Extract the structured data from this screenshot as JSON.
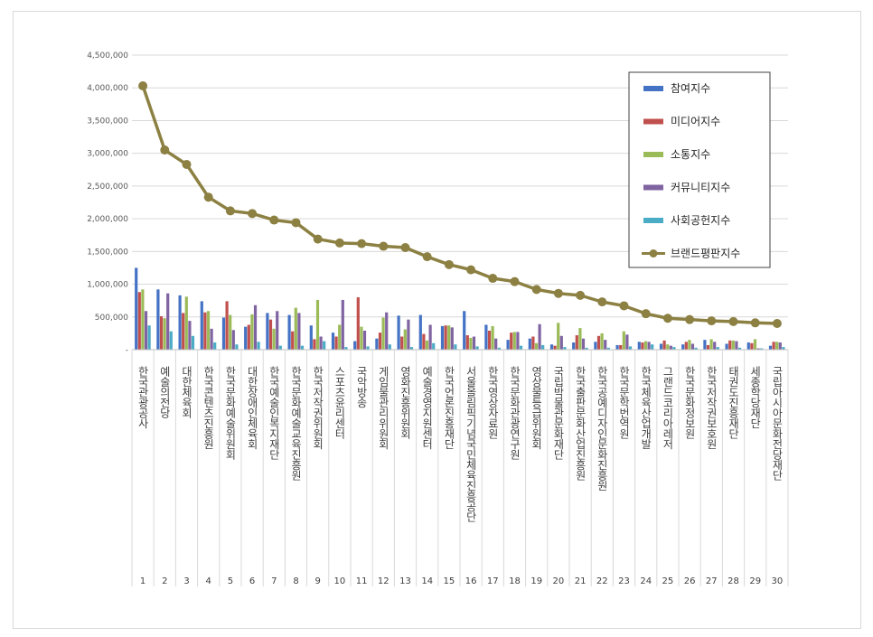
{
  "chart_data": {
    "type": "bar",
    "title": "",
    "xlabel": "",
    "ylabel": "",
    "ylim": [
      0,
      4500000
    ],
    "ytick_values": [
      0,
      500000,
      1000000,
      1500000,
      2000000,
      2500000,
      3000000,
      3500000,
      4000000,
      4500000
    ],
    "ytick_labels": [
      "-",
      "500,000",
      "1,000,000",
      "1,500,000",
      "2,000,000",
      "2,500,000",
      "3,000,000",
      "3,500,000",
      "4,000,000",
      "4,500,000"
    ],
    "grid": true,
    "legend_position": "top-right",
    "categories": [
      "한국관광공사",
      "예술의전당",
      "대한체육회",
      "한국콘텐츠진흥원",
      "한국문화예술위원회",
      "대한장애인체육회",
      "한국예술인복지재단",
      "한국문화예술교육진흥원",
      "한국저작권위원회",
      "스포츠윤리센터",
      "국악방송",
      "게임물관리위원회",
      "영화진흥위원회",
      "예술경영지원센터",
      "한국언론진흥재단",
      "서울올림픽기념국민체육진흥공단",
      "한국영상자료원",
      "한국문화관광연구원",
      "영상물등급위원회",
      "국립박물관문화재단",
      "한국출판문화산업진흥원",
      "한국공예디자인문화진흥원",
      "한국문학번역원",
      "한국체육산업개발",
      "그랜드코리아레저",
      "한국문화정보원",
      "한국저작권보호원",
      "태권도진흥재단",
      "세종학당재단",
      "국립아시아문화전당재단"
    ],
    "ranks": [
      "1",
      "2",
      "3",
      "4",
      "5",
      "6",
      "7",
      "8",
      "9",
      "10",
      "11",
      "12",
      "13",
      "14",
      "15",
      "16",
      "17",
      "18",
      "19",
      "20",
      "21",
      "22",
      "23",
      "24",
      "25",
      "26",
      "27",
      "28",
      "29",
      "30"
    ],
    "series": [
      {
        "name": "참여지수",
        "kind": "bar",
        "color": "#4472c4",
        "values": [
          1250000,
          920000,
          830000,
          740000,
          490000,
          350000,
          560000,
          530000,
          370000,
          260000,
          130000,
          170000,
          520000,
          530000,
          360000,
          590000,
          380000,
          150000,
          170000,
          80000,
          110000,
          120000,
          70000,
          120000,
          90000,
          80000,
          150000,
          90000,
          110000,
          60000
        ]
      },
      {
        "name": "미디어지수",
        "kind": "bar",
        "color": "#c0504d",
        "values": [
          880000,
          510000,
          560000,
          570000,
          740000,
          380000,
          460000,
          280000,
          160000,
          200000,
          800000,
          260000,
          200000,
          240000,
          370000,
          220000,
          290000,
          260000,
          200000,
          60000,
          220000,
          210000,
          70000,
          110000,
          140000,
          120000,
          70000,
          140000,
          100000,
          120000
        ]
      },
      {
        "name": "소통지수",
        "kind": "bar",
        "color": "#9bbb59",
        "values": [
          920000,
          480000,
          810000,
          590000,
          530000,
          540000,
          320000,
          640000,
          760000,
          380000,
          350000,
          490000,
          310000,
          140000,
          370000,
          180000,
          360000,
          270000,
          100000,
          410000,
          330000,
          250000,
          280000,
          130000,
          80000,
          150000,
          160000,
          140000,
          160000,
          120000
        ]
      },
      {
        "name": "커뮤니티지수",
        "kind": "bar",
        "color": "#8064a2",
        "values": [
          590000,
          860000,
          440000,
          320000,
          300000,
          680000,
          590000,
          560000,
          200000,
          760000,
          290000,
          570000,
          460000,
          380000,
          340000,
          200000,
          170000,
          270000,
          390000,
          210000,
          170000,
          150000,
          230000,
          120000,
          60000,
          90000,
          120000,
          130000,
          20000,
          110000
        ]
      },
      {
        "name": "사회공헌지수",
        "kind": "bar",
        "color": "#4bacc6",
        "values": [
          370000,
          280000,
          210000,
          110000,
          80000,
          120000,
          60000,
          60000,
          130000,
          40000,
          50000,
          80000,
          40000,
          100000,
          80000,
          50000,
          30000,
          60000,
          70000,
          40000,
          30000,
          30000,
          50000,
          80000,
          40000,
          30000,
          40000,
          30000,
          20000,
          40000
        ]
      },
      {
        "name": "브랜드평판지수",
        "kind": "line",
        "color": "#8c8042",
        "values": [
          4030000,
          3050000,
          2830000,
          2330000,
          2120000,
          2080000,
          1980000,
          1940000,
          1690000,
          1630000,
          1620000,
          1580000,
          1560000,
          1420000,
          1300000,
          1220000,
          1090000,
          1040000,
          920000,
          860000,
          830000,
          730000,
          670000,
          550000,
          480000,
          460000,
          440000,
          430000,
          410000,
          400000
        ]
      }
    ]
  }
}
